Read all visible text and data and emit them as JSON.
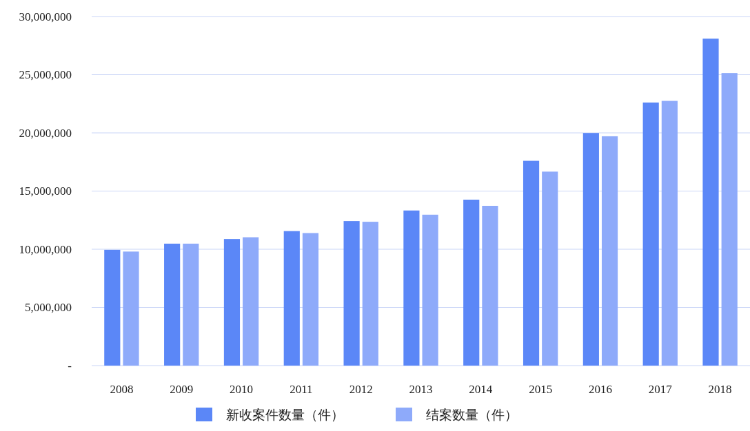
{
  "chart_data": {
    "type": "bar",
    "categories": [
      "2008",
      "2009",
      "2010",
      "2011",
      "2012",
      "2013",
      "2014",
      "2015",
      "2016",
      "2017",
      "2018"
    ],
    "series": [
      {
        "name": "新收案件数量（件）",
        "color": "#5b87f7",
        "values": [
          9950000,
          10480000,
          10880000,
          11560000,
          12420000,
          13330000,
          14260000,
          17600000,
          19990000,
          22610000,
          28100000
        ]
      },
      {
        "name": "结案数量（件）",
        "color": "#8eaafa",
        "values": [
          9800000,
          10480000,
          11030000,
          11390000,
          12360000,
          12970000,
          13730000,
          16670000,
          19710000,
          22750000,
          25140000
        ]
      }
    ],
    "ylim": [
      0,
      30000000
    ],
    "yticks": [
      {
        "value": 0,
        "label": "-"
      },
      {
        "value": 5000000,
        "label": "5,000,000"
      },
      {
        "value": 10000000,
        "label": "10,000,000"
      },
      {
        "value": 15000000,
        "label": "15,000,000"
      },
      {
        "value": 20000000,
        "label": "20,000,000"
      },
      {
        "value": 25000000,
        "label": "25,000,000"
      },
      {
        "value": 30000000,
        "label": "30,000,000"
      }
    ],
    "grid": "y",
    "legend": "bottom"
  }
}
